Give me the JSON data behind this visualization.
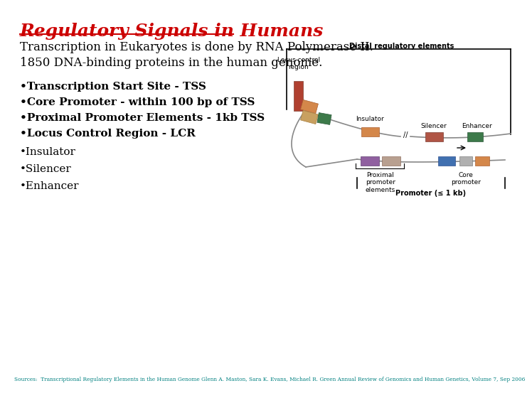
{
  "title": "Regulatory Signals in Humans",
  "title_color": "#cc0000",
  "background_color": "#ffffff",
  "subtitle1": "Transcription in Eukaryotes is done by RNA Polymerase II.",
  "subtitle2": "1850 DNA-binding proteins in the human genome.",
  "bullet_points": [
    "•Transcription Start Site - TSS",
    "•Core Promoter - within 100 bp of TSS",
    "•Proximal Promoter Elements - 1kb TSS",
    "•Locus Control Region - LCR",
    "•Insulator",
    "•Silencer",
    "•Enhancer"
  ],
  "source_prefix": "Sources:  Transcriptional Regulatory Elements in the Human Genome",
  "source_authors": "Glenn A. Maston, Sara K. Evans, Michael R. Green",
  "source_journal": "Annual Review of Genomics and Human Genetics",
  "source_end": ", Volume 7, Sep 2006",
  "source_color": "#008080",
  "diagram": {
    "distal_label": "Distal regulatory elements",
    "locus_label": "Locus control\nregion",
    "insulator_label": "Insulator",
    "silencer_label": "Silencer",
    "enhancer_label": "Enhancer",
    "proximal_label": "Proximal\npromoter\nelements",
    "core_label": "Core\npromoter",
    "promoter_label": "Promoter (≤ 1 kb)"
  }
}
